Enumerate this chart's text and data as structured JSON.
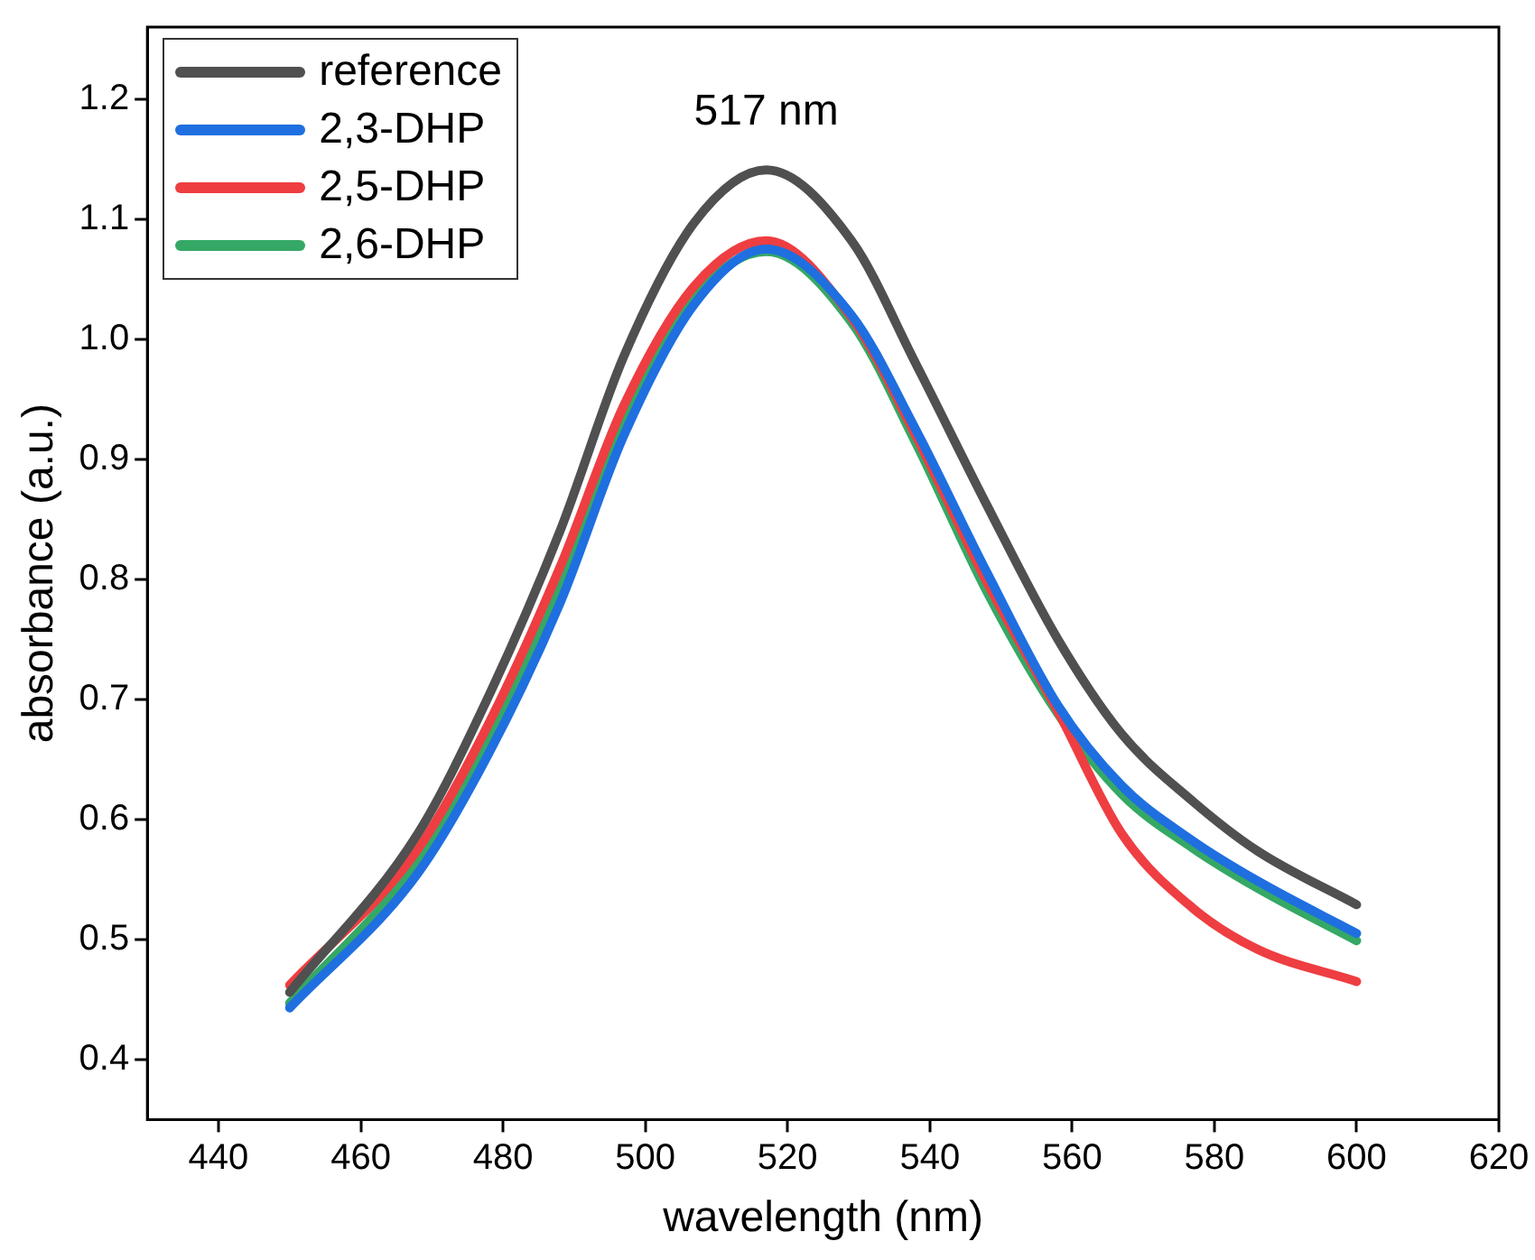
{
  "chart_data": {
    "type": "line",
    "xlabel": "wavelength (nm)",
    "ylabel": "absorbance (a.u.)",
    "x": [
      450,
      468,
      478,
      488,
      497,
      507,
      517,
      529,
      538,
      548,
      558,
      567,
      577,
      586,
      600
    ],
    "xlim": [
      430,
      620
    ],
    "xticks": [
      440,
      460,
      480,
      500,
      520,
      540,
      560,
      580,
      600,
      620
    ],
    "ylim": [
      0.35,
      1.26
    ],
    "yticks": [
      0.4,
      0.5,
      0.6,
      0.7,
      0.8,
      0.9,
      {
        "value": 1.0,
        "label": "1.0"
      },
      1.1,
      1.2
    ],
    "grid": false,
    "legend": "top left",
    "marker": "none",
    "line_style": "solid",
    "annotations": [
      {
        "text": "517 nm",
        "x": 517,
        "y": 1.141
      }
    ],
    "series": [
      {
        "name": "reference",
        "color": "#505050",
        "values": [
          0.456,
          0.588,
          0.703,
          0.84,
          0.986,
          1.098,
          1.141,
          1.082,
          0.98,
          0.862,
          0.75,
          0.671,
          0.615,
          0.574,
          0.529
        ]
      },
      {
        "name": "2,3-DHP",
        "color": "#1f6fe0",
        "values": [
          0.443,
          0.555,
          0.655,
          0.78,
          0.92,
          1.03,
          1.075,
          1.02,
          0.925,
          0.806,
          0.695,
          0.628,
          0.582,
          0.549,
          0.505
        ]
      },
      {
        "name": "2,5-DHP",
        "color": "#ee3e42",
        "values": [
          0.462,
          0.575,
          0.68,
          0.81,
          0.945,
          1.045,
          1.082,
          1.018,
          0.92,
          0.798,
          0.69,
          0.588,
          0.526,
          0.492,
          0.465
        ]
      },
      {
        "name": "2,6-DHP",
        "color": "#35a865",
        "values": [
          0.447,
          0.565,
          0.667,
          0.795,
          0.935,
          1.036,
          1.073,
          1.014,
          0.914,
          0.79,
          0.688,
          0.621,
          0.576,
          0.543,
          0.499
        ]
      }
    ]
  }
}
